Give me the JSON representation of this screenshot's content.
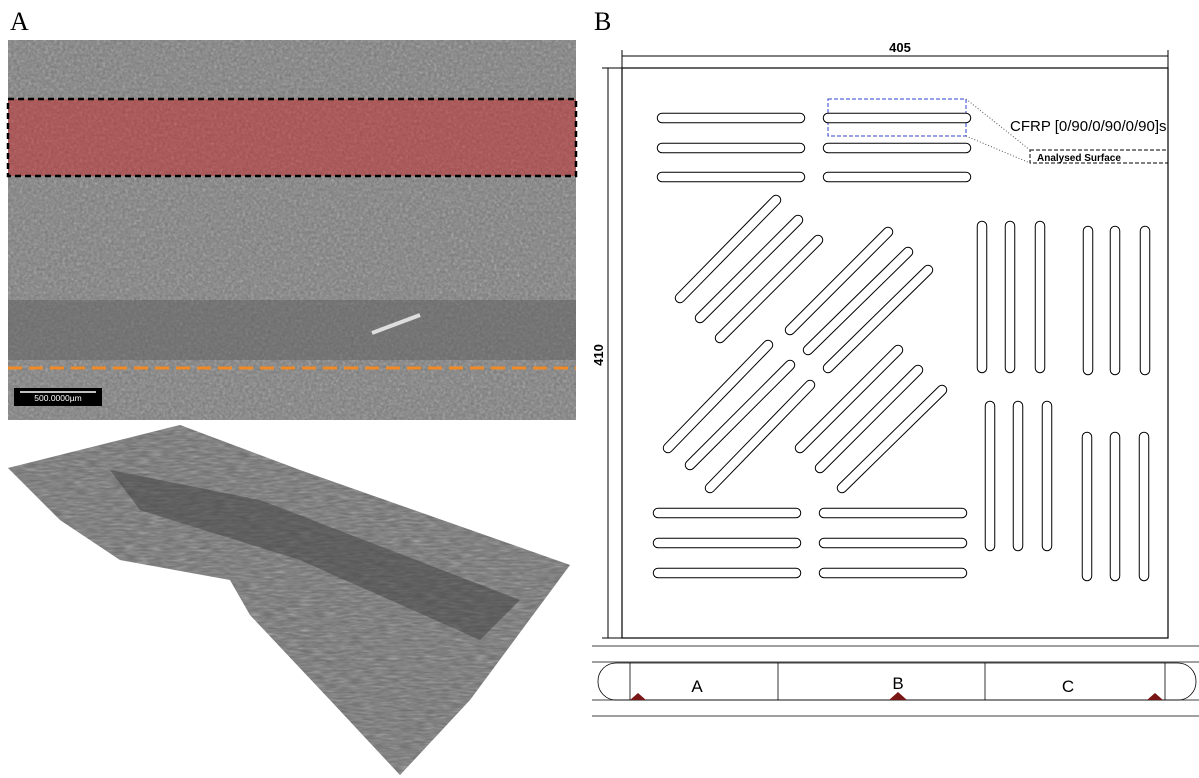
{
  "panel_a": {
    "label": "A",
    "scale_bar": "500.0000µm"
  },
  "panel_b": {
    "label": "B",
    "width_dim": "405",
    "height_dim": "410",
    "laminate": "CFRP [0/90/0/90/0/90]s",
    "surface": "Analysed Surface",
    "sections": [
      "A",
      "B",
      "C"
    ]
  }
}
